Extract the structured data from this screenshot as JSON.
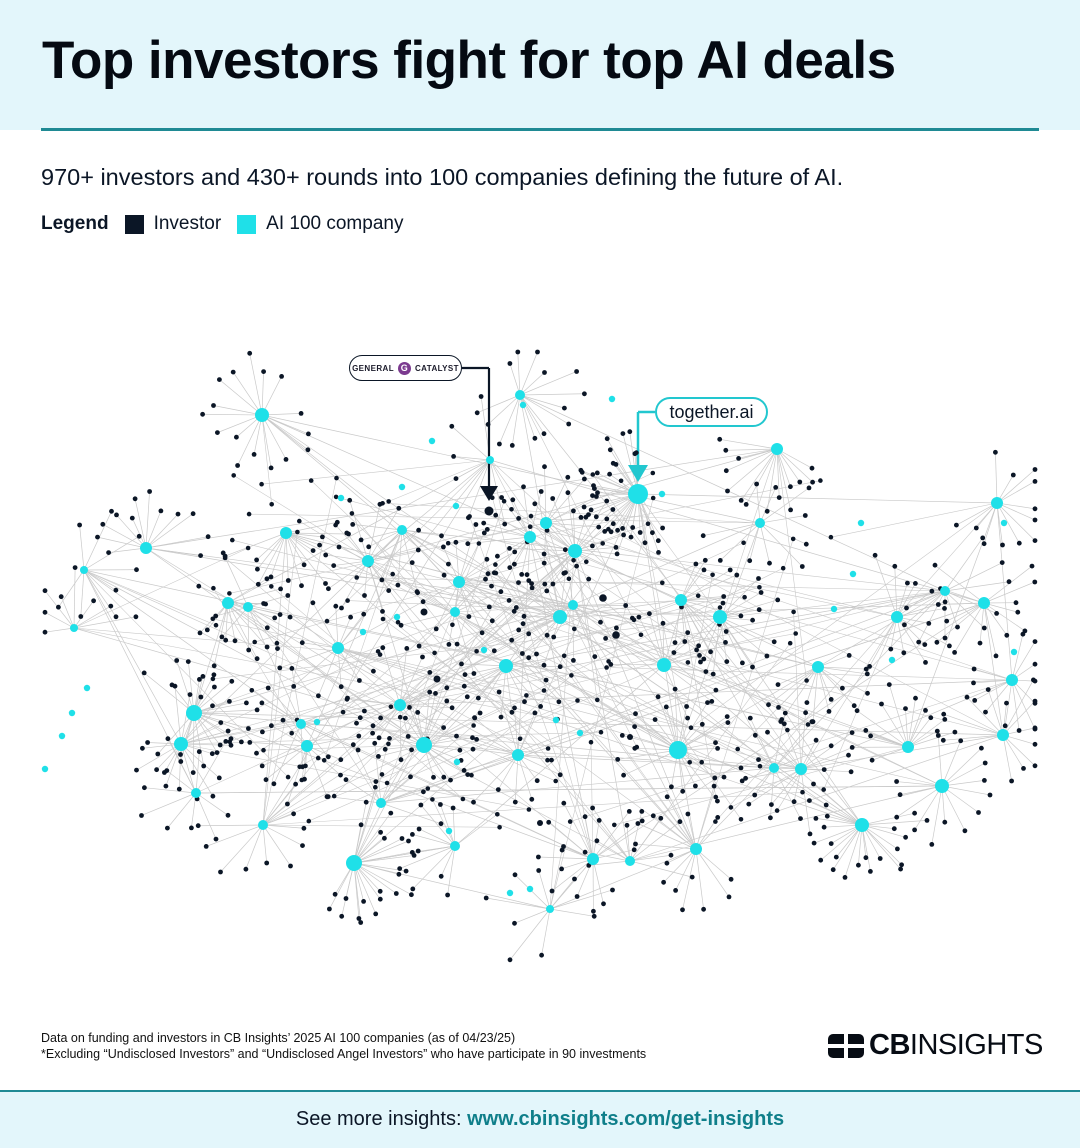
{
  "title": "Top investors fight for top AI deals",
  "subtitle": "970+ investors and 430+ rounds into 100 companies defining the future of AI.",
  "legend": {
    "label": "Legend",
    "investor": {
      "label": "Investor",
      "color": "#0b1626"
    },
    "company": {
      "label": "AI 100 company",
      "color": "#1fe0e8"
    }
  },
  "callouts": {
    "general_catalyst": {
      "left": "GENERAL",
      "mark": "G",
      "right": "CATALYST"
    },
    "together_ai": {
      "label": "together.ai"
    }
  },
  "footnote": {
    "line1": "Data on funding and investors in CB Insights’ 2025 AI 100 companies (as of 04/23/25)",
    "line2": "*Excluding “Undisclosed Investors” and “Undisclosed Angel Investors” who have participate in 90 investments"
  },
  "brand": {
    "bold": "CB",
    "light": "INSIGHTS"
  },
  "cta": {
    "prefix": "See more insights: ",
    "link": "www.cbinsights.com/get-insights"
  },
  "colors": {
    "investor": "#0b1626",
    "company": "#1fe0e8",
    "edge": "#c9c9c9",
    "accent": "#1f8a94"
  }
}
